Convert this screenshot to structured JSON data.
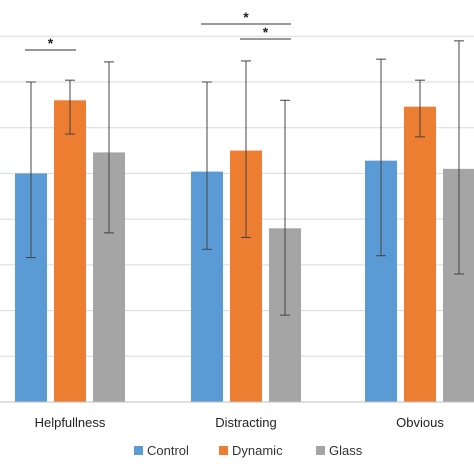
{
  "chart_data": {
    "type": "bar",
    "categories": [
      "Helpfullness",
      "Distracting",
      "Obvious"
    ],
    "series": [
      {
        "name": "Control",
        "color": "#5b9bd5",
        "values": [
          2.5,
          2.52,
          2.64
        ],
        "error_low": [
          1.58,
          1.67,
          1.6
        ],
        "error_high": [
          3.5,
          3.5,
          3.75
        ]
      },
      {
        "name": "Dynamic",
        "color": "#ed7d31",
        "values": [
          3.3,
          2.75,
          3.23
        ],
        "error_low": [
          2.93,
          1.8,
          2.9
        ],
        "error_high": [
          3.52,
          3.73,
          3.52
        ]
      },
      {
        "name": "Glass",
        "color": "#a5a5a5",
        "values": [
          2.73,
          1.9,
          2.55
        ],
        "error_low": [
          1.85,
          0.95,
          1.4
        ],
        "error_high": [
          3.72,
          3.3,
          3.95
        ]
      }
    ],
    "significance": [
      {
        "category": "Helpfullness",
        "from": "Control",
        "to": "Dynamic",
        "label": "*"
      },
      {
        "category": "Distracting",
        "from": "Control",
        "to": "Glass",
        "label": "*"
      },
      {
        "category": "Distracting",
        "from": "Dynamic",
        "to": "Glass",
        "label": "*"
      }
    ],
    "ylim": [
      0,
      4.2
    ],
    "grid": true,
    "legend_position": "bottom"
  }
}
